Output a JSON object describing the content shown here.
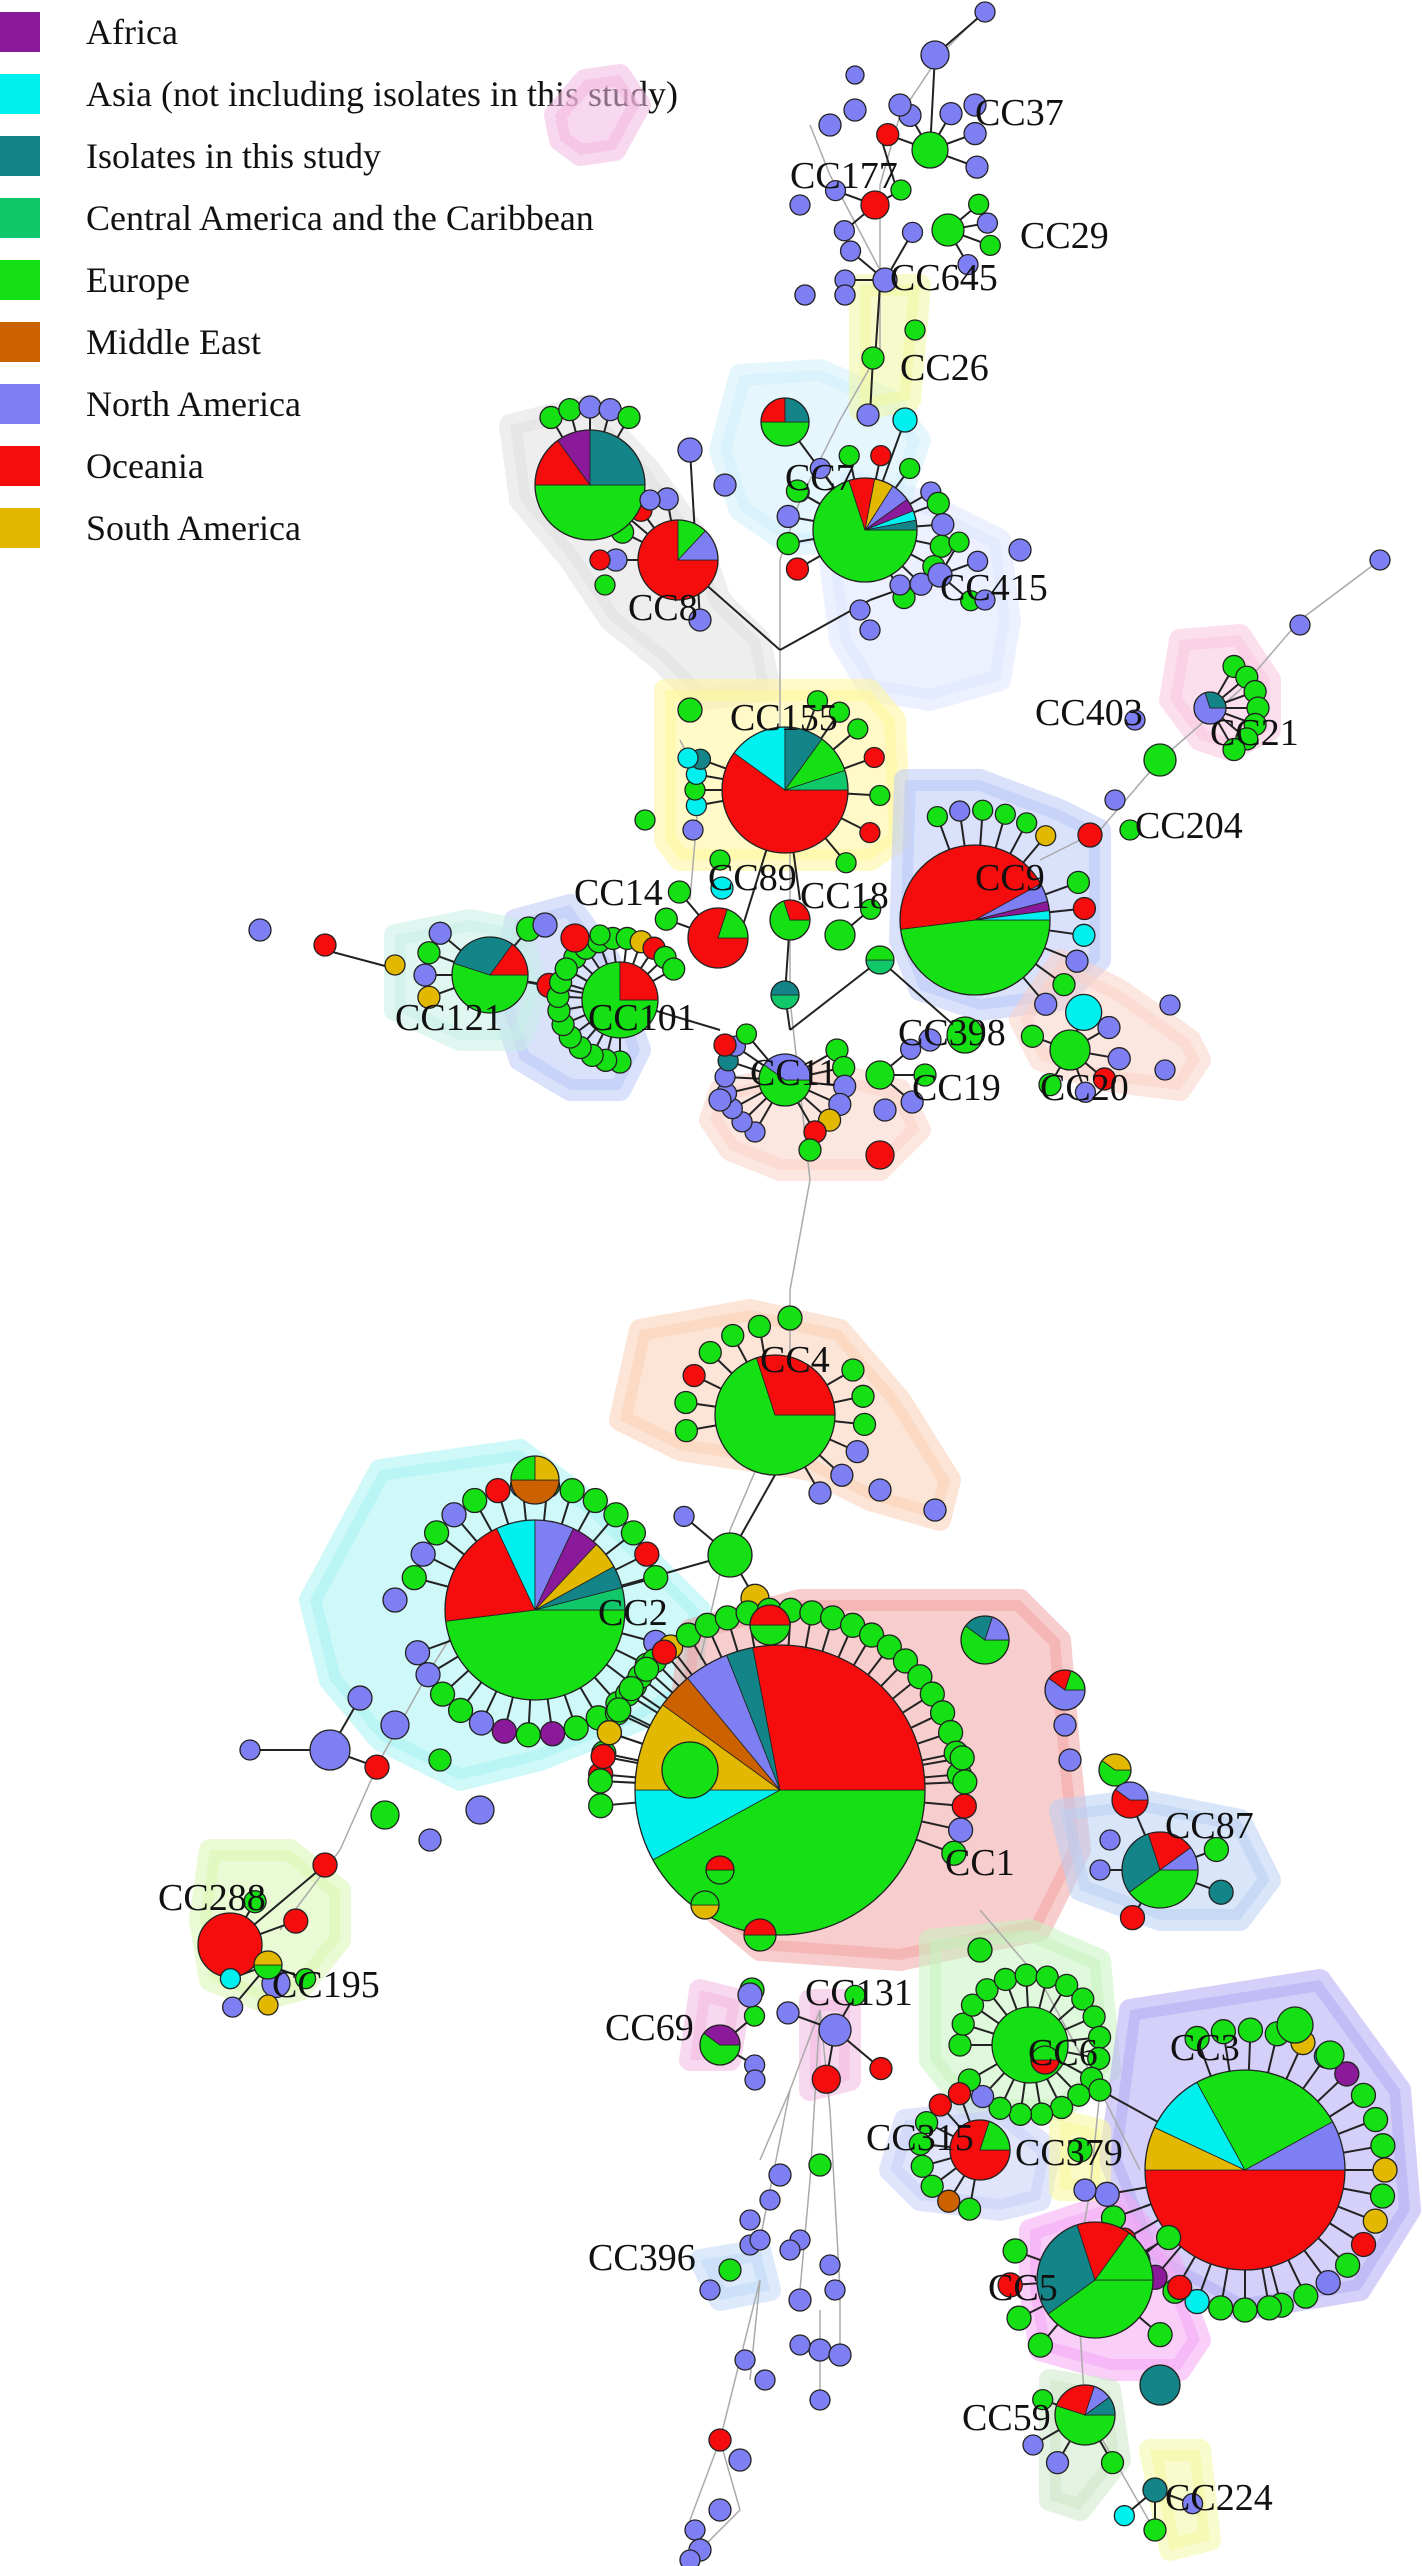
{
  "colors": {
    "africa": "#8B1A9B",
    "asia": "#00F0F0",
    "isolates": "#138487",
    "central_america": "#10C86A",
    "europe": "#14E014",
    "middle_east": "#CC6100",
    "north_america": "#7F7FF4",
    "oceania": "#F50C0C",
    "south_america": "#E2B800",
    "edge": "#222222"
  },
  "legend": [
    {
      "label": "Africa",
      "color_key": "africa"
    },
    {
      "label": "Asia (not including isolates in this study)",
      "color_key": "asia"
    },
    {
      "label": "Isolates in this study",
      "color_key": "isolates"
    },
    {
      "label": "Central America and the Caribbean",
      "color_key": "central_america"
    },
    {
      "label": "Europe",
      "color_key": "europe"
    },
    {
      "label": "Middle East",
      "color_key": "middle_east"
    },
    {
      "label": "North America",
      "color_key": "north_america"
    },
    {
      "label": "Oceania",
      "color_key": "oceania"
    },
    {
      "label": "South America",
      "color_key": "south_america"
    }
  ],
  "clonal_complexes": [
    {
      "label": "CC37"
    },
    {
      "label": "CC177"
    },
    {
      "label": "CC29"
    },
    {
      "label": "CC645"
    },
    {
      "label": "CC26"
    },
    {
      "label": "CC7"
    },
    {
      "label": "CC8"
    },
    {
      "label": "CC415"
    },
    {
      "label": "CC155"
    },
    {
      "label": "CC403"
    },
    {
      "label": "CC21"
    },
    {
      "label": "CC204"
    },
    {
      "label": "CC9"
    },
    {
      "label": "CC14"
    },
    {
      "label": "CC89"
    },
    {
      "label": "CC18"
    },
    {
      "label": "CC121"
    },
    {
      "label": "CC101"
    },
    {
      "label": "CC398"
    },
    {
      "label": "CC11"
    },
    {
      "label": "CC19"
    },
    {
      "label": "CC20"
    },
    {
      "label": "CC4"
    },
    {
      "label": "CC2"
    },
    {
      "label": "CC87"
    },
    {
      "label": "CC1"
    },
    {
      "label": "CC288"
    },
    {
      "label": "CC195"
    },
    {
      "label": "CC131"
    },
    {
      "label": "CC69"
    },
    {
      "label": "CC6"
    },
    {
      "label": "CC3"
    },
    {
      "label": "CC315"
    },
    {
      "label": "CC379"
    },
    {
      "label": "CC396"
    },
    {
      "label": "CC5"
    },
    {
      "label": "CC59"
    },
    {
      "label": "CC224"
    }
  ]
}
